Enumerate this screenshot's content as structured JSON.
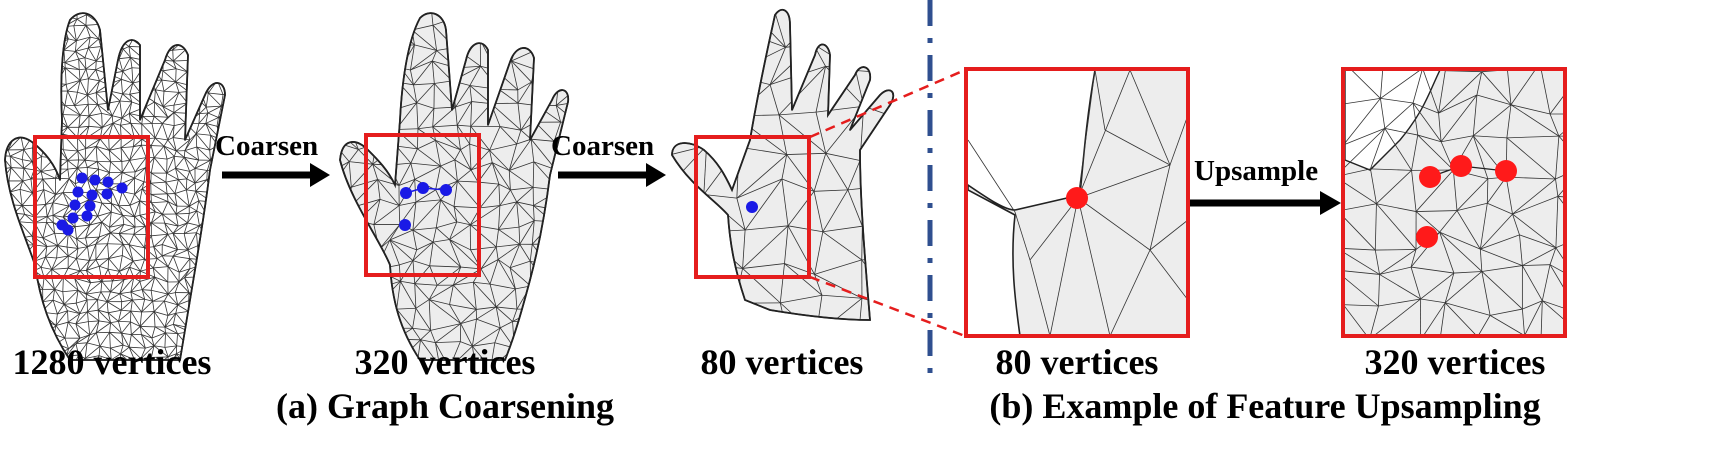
{
  "arrows": {
    "coarsen_1": "Coarsen",
    "coarsen_2": "Coarsen",
    "upsample": "Upsample"
  },
  "panels": [
    {
      "vertex_label": "1280 vertices"
    },
    {
      "vertex_label": "320 vertices"
    },
    {
      "vertex_label": "80 vertices"
    },
    {
      "vertex_label": "80 vertices"
    },
    {
      "vertex_label": "320 vertices"
    }
  ],
  "captions": {
    "a": "(a) Graph Coarsening",
    "b": "(b) Example of Feature Upsampling"
  },
  "colors": {
    "box": "#e51d1d",
    "blue_point": "#1a1ae6",
    "red_point": "#ff1a1a",
    "divider": "#2f4f8f"
  }
}
